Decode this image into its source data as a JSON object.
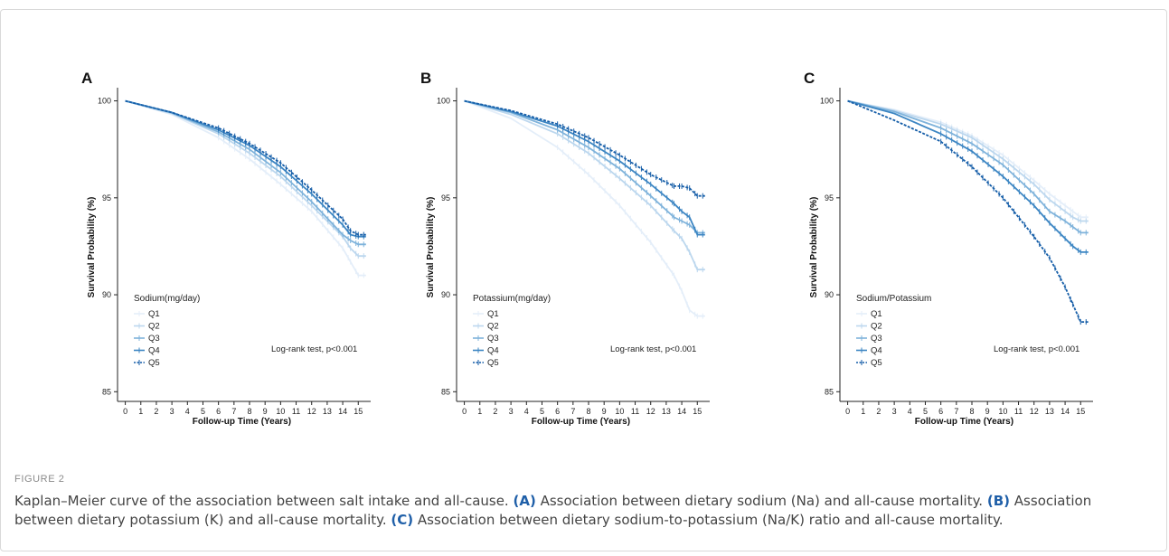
{
  "figure_label": "FIGURE 2",
  "caption": {
    "title": "Kaplan–Meier curve of the association between salt intake and all-cause.",
    "parts": [
      {
        "label": "(A)",
        "text": " Association between dietary sodium (Na) and all-cause mortality."
      },
      {
        "label": "(B)",
        "text": " Association between dietary potassium (K) and all-cause mortality."
      },
      {
        "label": "(C)",
        "text": " Association between dietary sodium-to-potassium (Na/K) ratio and all-cause mortality."
      }
    ]
  },
  "colors": [
    "#e4eef9",
    "#bcd7ee",
    "#7fb3db",
    "#3d86c3",
    "#165ea8"
  ],
  "chart_data": [
    {
      "type": "line",
      "panel": "A",
      "xlabel": "Follow-up Time (Years)",
      "ylabel": "Survival Probability (%)",
      "xticks": [
        0,
        1,
        2,
        3,
        4,
        5,
        6,
        7,
        8,
        9,
        10,
        11,
        12,
        13,
        14,
        15
      ],
      "yticks": [
        85,
        90,
        95,
        100
      ],
      "xlim": [
        -0.5,
        15.8
      ],
      "ylim": [
        84.5,
        100.4
      ],
      "legend_title": "Sodium(mg/day)",
      "annotation": "Log-rank test, p<0.001",
      "series": [
        {
          "name": "Q1",
          "x": [
            0,
            3,
            6,
            8,
            10,
            12,
            14,
            14.5,
            15,
            15.5
          ],
          "y": [
            100,
            99.3,
            98.1,
            97.0,
            95.7,
            94.3,
            92.4,
            91.7,
            91.0,
            91.0
          ]
        },
        {
          "name": "Q2",
          "x": [
            0,
            3,
            6,
            8,
            10,
            12,
            14,
            14.5,
            15,
            15.5
          ],
          "y": [
            100,
            99.35,
            98.3,
            97.3,
            96.1,
            94.6,
            93.0,
            92.4,
            92.0,
            92.0
          ]
        },
        {
          "name": "Q3",
          "x": [
            0,
            3,
            6,
            8,
            10,
            12,
            14,
            14.5,
            15,
            15.5
          ],
          "y": [
            100,
            99.38,
            98.4,
            97.5,
            96.3,
            94.8,
            93.1,
            92.8,
            92.6,
            92.6
          ]
        },
        {
          "name": "Q4",
          "x": [
            0,
            3,
            6,
            8,
            10,
            12,
            14,
            14.5,
            15,
            15.5
          ],
          "y": [
            100,
            99.4,
            98.5,
            97.7,
            96.6,
            95.2,
            93.6,
            93.1,
            93.0,
            93.0
          ]
        },
        {
          "name": "Q5",
          "x": [
            0,
            3,
            6,
            8,
            10,
            12,
            14,
            14.5,
            15,
            15.5
          ],
          "y": [
            100,
            99.4,
            98.6,
            97.8,
            96.8,
            95.4,
            93.9,
            93.3,
            93.1,
            93.1
          ]
        }
      ]
    },
    {
      "type": "line",
      "panel": "B",
      "xlabel": "Follow-up Time (Years)",
      "ylabel": "Survival Probability (%)",
      "xticks": [
        0,
        1,
        2,
        3,
        4,
        5,
        6,
        7,
        8,
        9,
        10,
        11,
        12,
        13,
        14,
        15
      ],
      "yticks": [
        85,
        90,
        95,
        100
      ],
      "xlim": [
        -0.5,
        15.8
      ],
      "ylim": [
        84.5,
        100.4
      ],
      "legend_title": "Potassium(mg/day)",
      "annotation": "Log-rank test, p<0.001",
      "series": [
        {
          "name": "Q1",
          "x": [
            0,
            3,
            6,
            8,
            10,
            12,
            13.5,
            14,
            14.5,
            15,
            15.5
          ],
          "y": [
            100,
            99.1,
            97.6,
            96.2,
            94.6,
            92.7,
            91.0,
            90.2,
            89.2,
            88.9,
            88.9
          ]
        },
        {
          "name": "Q2",
          "x": [
            0,
            3,
            6,
            8,
            10,
            12,
            13.5,
            14,
            14.5,
            15,
            15.5
          ],
          "y": [
            100,
            99.3,
            98.3,
            97.3,
            96.0,
            94.6,
            93.3,
            92.9,
            92.2,
            91.3,
            91.3
          ]
        },
        {
          "name": "Q3",
          "x": [
            0,
            3,
            6,
            8,
            10,
            12,
            13.5,
            14,
            14.5,
            15,
            15.5
          ],
          "y": [
            100,
            99.4,
            98.5,
            97.6,
            96.5,
            95.1,
            94.0,
            93.8,
            93.6,
            93.2,
            93.2
          ]
        },
        {
          "name": "Q4",
          "x": [
            0,
            3,
            6,
            8,
            10,
            12,
            13.5,
            14,
            14.5,
            15,
            15.5
          ],
          "y": [
            100,
            99.45,
            98.7,
            97.9,
            96.9,
            95.7,
            94.7,
            94.3,
            94.0,
            93.1,
            93.1
          ]
        },
        {
          "name": "Q5",
          "x": [
            0,
            3,
            6,
            8,
            10,
            12,
            13.5,
            14,
            14.5,
            15,
            15.5
          ],
          "y": [
            100,
            99.5,
            98.8,
            98.1,
            97.2,
            96.2,
            95.6,
            95.6,
            95.5,
            95.1,
            95.1
          ]
        }
      ]
    },
    {
      "type": "line",
      "panel": "C",
      "xlabel": "Follow-up Time (Years)",
      "ylabel": "Survival Probability (%)",
      "xticks": [
        0,
        1,
        2,
        3,
        4,
        5,
        6,
        7,
        8,
        9,
        10,
        11,
        12,
        13,
        14,
        15
      ],
      "yticks": [
        85,
        90,
        95,
        100
      ],
      "xlim": [
        -0.5,
        15.8
      ],
      "ylim": [
        84.5,
        100.4
      ],
      "legend_title": "Sodium/Potassium",
      "annotation": "Log-rank test, p<0.001",
      "series": [
        {
          "name": "Q1",
          "x": [
            0,
            3,
            6,
            8,
            10,
            12,
            13,
            14,
            14.5,
            15,
            15.5
          ],
          "y": [
            100,
            99.55,
            98.9,
            98.2,
            97.2,
            95.9,
            95.2,
            94.6,
            94.3,
            94.0,
            94.0
          ]
        },
        {
          "name": "Q2",
          "x": [
            0,
            3,
            6,
            8,
            10,
            12,
            13,
            14,
            14.5,
            15,
            15.5
          ],
          "y": [
            100,
            99.5,
            98.8,
            98.1,
            97.0,
            95.7,
            94.9,
            94.3,
            94.0,
            93.8,
            93.8
          ]
        },
        {
          "name": "Q3",
          "x": [
            0,
            3,
            6,
            8,
            10,
            12,
            13,
            14,
            14.5,
            15,
            15.5
          ],
          "y": [
            100,
            99.45,
            98.6,
            97.8,
            96.7,
            95.2,
            94.3,
            93.8,
            93.5,
            93.2,
            93.2
          ]
        },
        {
          "name": "Q4",
          "x": [
            0,
            3,
            6,
            8,
            10,
            12,
            13,
            14,
            14.5,
            15,
            15.5
          ],
          "y": [
            100,
            99.35,
            98.3,
            97.4,
            96.1,
            94.6,
            93.7,
            92.9,
            92.5,
            92.2,
            92.2
          ]
        },
        {
          "name": "Q5",
          "x": [
            0,
            3,
            6,
            8,
            10,
            12,
            13,
            14,
            14.5,
            15,
            15.5
          ],
          "y": [
            100,
            99.0,
            97.9,
            96.6,
            95.0,
            93.0,
            91.9,
            90.4,
            89.5,
            88.6,
            88.6
          ]
        }
      ]
    }
  ]
}
